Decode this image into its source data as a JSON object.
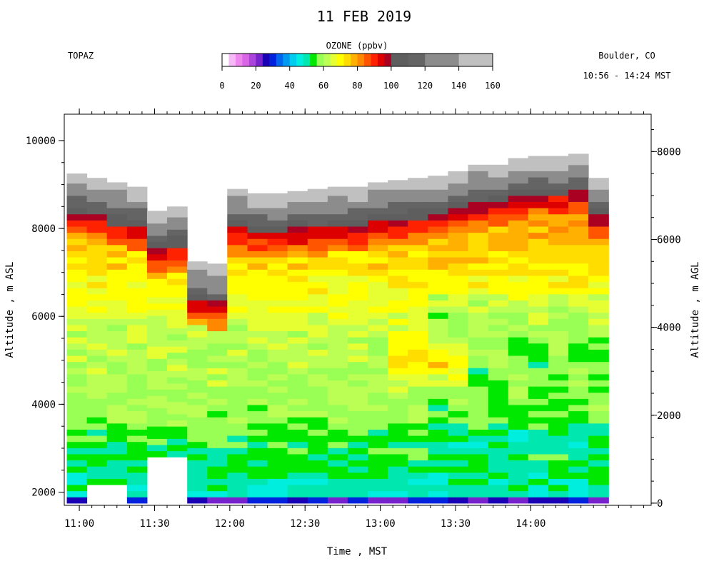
{
  "chart_data": {
    "type": "heatmap",
    "title": "11 FEB 2019",
    "instrument": "TOPAZ",
    "location": "Boulder, CO",
    "time_range_label": "10:56 - 14:24 MST",
    "colorbar": {
      "title": "OZONE (ppbv)",
      "tick_labels": [
        "0",
        "20",
        "40",
        "60",
        "80",
        "100",
        "120",
        "140",
        "160"
      ],
      "stops": [
        {
          "lo": 0,
          "hi": 4,
          "color": "#ffffff"
        },
        {
          "lo": 4,
          "hi": 8,
          "color": "#f7b8f7"
        },
        {
          "lo": 8,
          "hi": 12,
          "color": "#ee88ee"
        },
        {
          "lo": 12,
          "hi": 16,
          "color": "#d966e6"
        },
        {
          "lo": 16,
          "hi": 20,
          "color": "#aa44dd"
        },
        {
          "lo": 20,
          "hi": 24,
          "color": "#7722cc"
        },
        {
          "lo": 24,
          "hi": 28,
          "color": "#1a00b4"
        },
        {
          "lo": 28,
          "hi": 32,
          "color": "#0022dd"
        },
        {
          "lo": 32,
          "hi": 36,
          "color": "#0066ee"
        },
        {
          "lo": 36,
          "hi": 40,
          "color": "#0099f0"
        },
        {
          "lo": 40,
          "hi": 44,
          "color": "#00ccf0"
        },
        {
          "lo": 44,
          "hi": 48,
          "color": "#00eedd"
        },
        {
          "lo": 48,
          "hi": 52,
          "color": "#00e8b0"
        },
        {
          "lo": 52,
          "hi": 56,
          "color": "#00e800"
        },
        {
          "lo": 56,
          "hi": 60,
          "color": "#99ff55"
        },
        {
          "lo": 60,
          "hi": 64,
          "color": "#bbff55"
        },
        {
          "lo": 64,
          "hi": 68,
          "color": "#e6ff33"
        },
        {
          "lo": 68,
          "hi": 72,
          "color": "#ffff00"
        },
        {
          "lo": 72,
          "hi": 76,
          "color": "#ffdd00"
        },
        {
          "lo": 76,
          "hi": 80,
          "color": "#ffb000"
        },
        {
          "lo": 80,
          "hi": 84,
          "color": "#ff8800"
        },
        {
          "lo": 84,
          "hi": 88,
          "color": "#ff5500"
        },
        {
          "lo": 88,
          "hi": 92,
          "color": "#ff2200"
        },
        {
          "lo": 92,
          "hi": 96,
          "color": "#dd0000"
        },
        {
          "lo": 96,
          "hi": 100,
          "color": "#aa0022"
        },
        {
          "lo": 100,
          "hi": 110,
          "color": "#5e5e5e"
        },
        {
          "lo": 110,
          "hi": 120,
          "color": "#646464"
        },
        {
          "lo": 120,
          "hi": 140,
          "color": "#8c8c8c"
        },
        {
          "lo": 140,
          "hi": 160,
          "color": "#c0c0c0"
        }
      ]
    },
    "xlabel": "Time , MST",
    "ylabel_left": "Altitude , m ASL",
    "ylabel_right": "Altitude , m AGL",
    "x_range_hours": [
      10.9,
      14.8
    ],
    "y_range_m_asl": [
      1700,
      10600
    ],
    "y_range_m_agl": [
      -50,
      8850
    ],
    "x_ticks": [
      {
        "t": 11.0,
        "label": "11:00"
      },
      {
        "t": 11.5,
        "label": "11:30"
      },
      {
        "t": 12.0,
        "label": "12:00"
      },
      {
        "t": 12.5,
        "label": "12:30"
      },
      {
        "t": 13.0,
        "label": "13:00"
      },
      {
        "t": 13.5,
        "label": "13:30"
      },
      {
        "t": 14.0,
        "label": "14:00"
      }
    ],
    "y_ticks_left": [
      {
        "v": 2000,
        "label": "2000"
      },
      {
        "v": 4000,
        "label": "4000"
      },
      {
        "v": 6000,
        "label": "6000"
      },
      {
        "v": 8000,
        "label": "8000"
      },
      {
        "v": 10000,
        "label": "10000"
      }
    ],
    "y_ticks_right": [
      {
        "v": 0,
        "label": "0"
      },
      {
        "v": 2000,
        "label": "2000"
      },
      {
        "v": 4000,
        "label": "4000"
      },
      {
        "v": 6000,
        "label": "6000"
      },
      {
        "v": 8000,
        "label": "8000"
      }
    ],
    "profiles": [
      {
        "t0": 10.917,
        "t1": 11.05,
        "top": 9250,
        "bottom": 1750,
        "gap": null
      },
      {
        "t0": 11.05,
        "t1": 11.183,
        "top": 9150,
        "bottom": 1750,
        "gap": [
          1750,
          2100
        ]
      },
      {
        "t0": 11.183,
        "t1": 11.317,
        "top": 9050,
        "bottom": 1750,
        "gap": [
          1750,
          2100
        ]
      },
      {
        "t0": 11.317,
        "t1": 11.45,
        "top": 8950,
        "bottom": 1750,
        "gap": null
      },
      {
        "t0": 11.45,
        "t1": 11.583,
        "top": 8400,
        "bottom": 2800,
        "gap": null
      },
      {
        "t0": 11.583,
        "t1": 11.717,
        "top": 8500,
        "bottom": 2800,
        "gap": null
      },
      {
        "t0": 11.717,
        "t1": 11.85,
        "top": 7250,
        "bottom": 1750,
        "gap": null
      },
      {
        "t0": 11.85,
        "t1": 11.983,
        "top": 7200,
        "bottom": 1750,
        "gap": null
      },
      {
        "t0": 11.983,
        "t1": 12.117,
        "top": 8900,
        "bottom": 1750,
        "gap": null
      },
      {
        "t0": 12.117,
        "t1": 12.25,
        "top": 8800,
        "bottom": 1750,
        "gap": null
      },
      {
        "t0": 12.25,
        "t1": 12.383,
        "top": 8800,
        "bottom": 1750,
        "gap": null
      },
      {
        "t0": 12.383,
        "t1": 12.517,
        "top": 8850,
        "bottom": 1750,
        "gap": null
      },
      {
        "t0": 12.517,
        "t1": 12.65,
        "top": 8900,
        "bottom": 1750,
        "gap": null
      },
      {
        "t0": 12.65,
        "t1": 12.783,
        "top": 8950,
        "bottom": 1750,
        "gap": null
      },
      {
        "t0": 12.783,
        "t1": 12.917,
        "top": 8950,
        "bottom": 1750,
        "gap": null
      },
      {
        "t0": 12.917,
        "t1": 13.05,
        "top": 9050,
        "bottom": 1750,
        "gap": null
      },
      {
        "t0": 13.05,
        "t1": 13.183,
        "top": 9100,
        "bottom": 1750,
        "gap": null
      },
      {
        "t0": 13.183,
        "t1": 13.317,
        "top": 9150,
        "bottom": 1750,
        "gap": null
      },
      {
        "t0": 13.317,
        "t1": 13.45,
        "top": 9200,
        "bottom": 1750,
        "gap": null
      },
      {
        "t0": 13.45,
        "t1": 13.583,
        "top": 9300,
        "bottom": 1750,
        "gap": null
      },
      {
        "t0": 13.583,
        "t1": 13.717,
        "top": 9450,
        "bottom": 1750,
        "gap": null
      },
      {
        "t0": 13.717,
        "t1": 13.85,
        "top": 9450,
        "bottom": 1750,
        "gap": null
      },
      {
        "t0": 13.85,
        "t1": 13.983,
        "top": 9600,
        "bottom": 1750,
        "gap": null
      },
      {
        "t0": 13.983,
        "t1": 14.117,
        "top": 9650,
        "bottom": 1750,
        "gap": null
      },
      {
        "t0": 14.117,
        "t1": 14.25,
        "top": 9650,
        "bottom": 1750,
        "gap": null
      },
      {
        "t0": 14.25,
        "t1": 14.383,
        "top": 9700,
        "bottom": 1750,
        "gap": null
      },
      {
        "t0": 14.383,
        "t1": 14.517,
        "top": 9150,
        "bottom": 1750,
        "gap": null
      }
    ]
  }
}
